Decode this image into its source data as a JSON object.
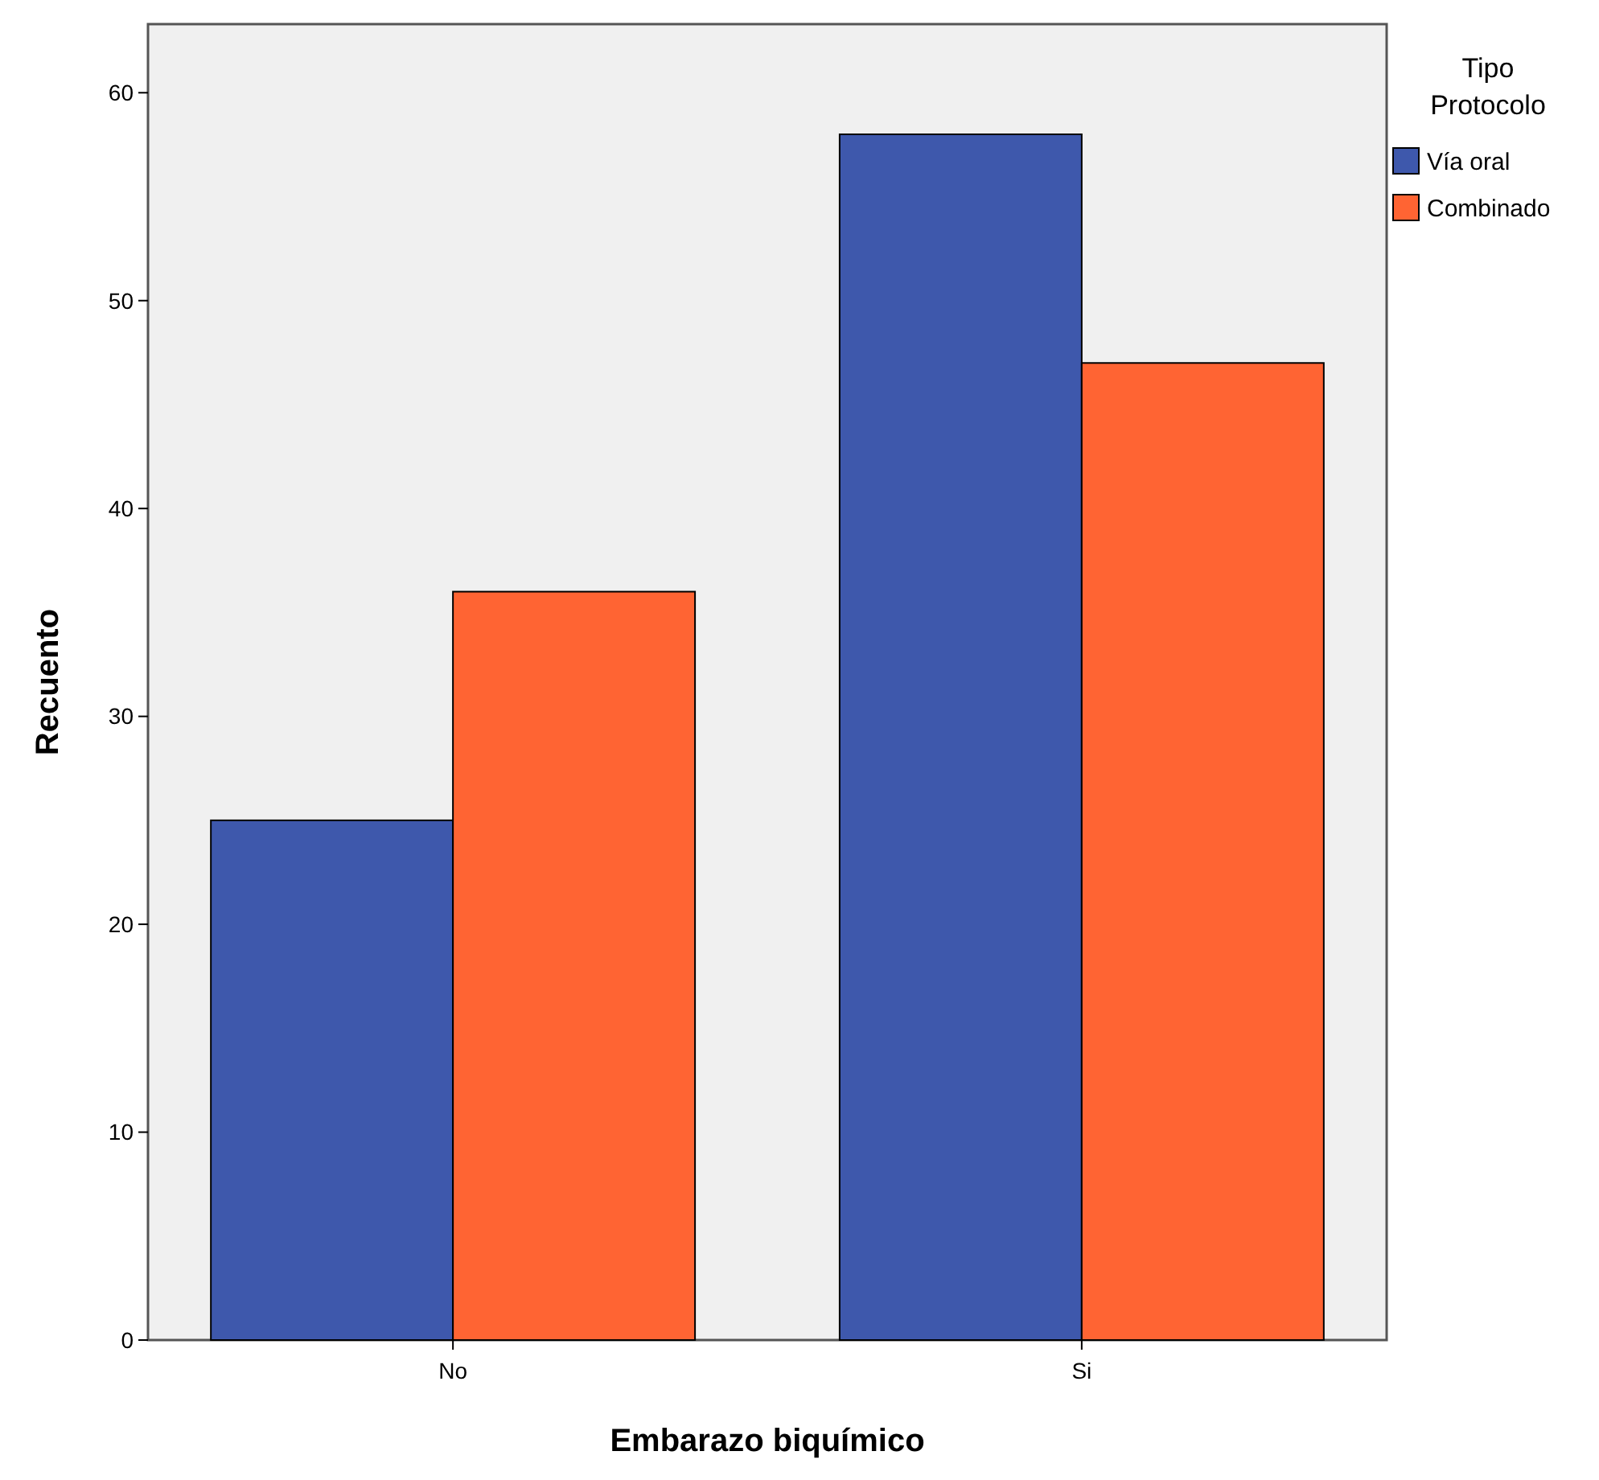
{
  "chart_data": {
    "type": "bar",
    "xlabel": "Embarazo biquímico",
    "ylabel": "Recuento",
    "legend_title": "Tipo Protocolo",
    "categories": [
      "No",
      "Si"
    ],
    "series": [
      {
        "name": "Vía oral",
        "color": "#3e58ac",
        "values": [
          25,
          58
        ]
      },
      {
        "name": "Combinado",
        "color": "#ff6433",
        "values": [
          36,
          47
        ]
      }
    ],
    "ylim": [
      0,
      63.3
    ],
    "yticks": [
      0,
      10,
      20,
      30,
      40,
      50,
      60
    ],
    "legend": "right",
    "grid": false
  }
}
